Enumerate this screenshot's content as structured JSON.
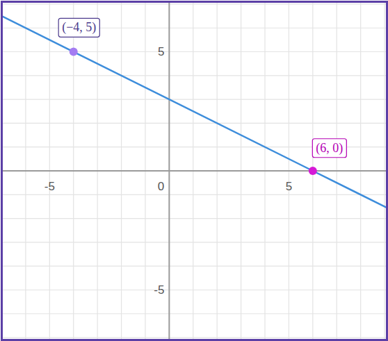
{
  "chart_data": {
    "type": "line",
    "x": [
      -7,
      -4,
      6,
      9.1
    ],
    "values": [
      6.5,
      5,
      0,
      -1.55
    ],
    "color": "#3d8ddb",
    "xlim": [
      -7,
      9.1
    ],
    "ylim": [
      -7.1,
      7.1
    ],
    "xticks": [
      -5,
      0,
      5
    ],
    "yticks": [
      -5,
      5
    ],
    "grid": true,
    "points": [
      {
        "x": -4,
        "y": 5,
        "label": "(−4, 5)",
        "color": "#a47cf2",
        "label_color": "#4b3a8c"
      },
      {
        "x": 6,
        "y": 0,
        "label": "(6, 0)",
        "color": "#d61ad6",
        "label_color": "#b400b4"
      }
    ]
  }
}
